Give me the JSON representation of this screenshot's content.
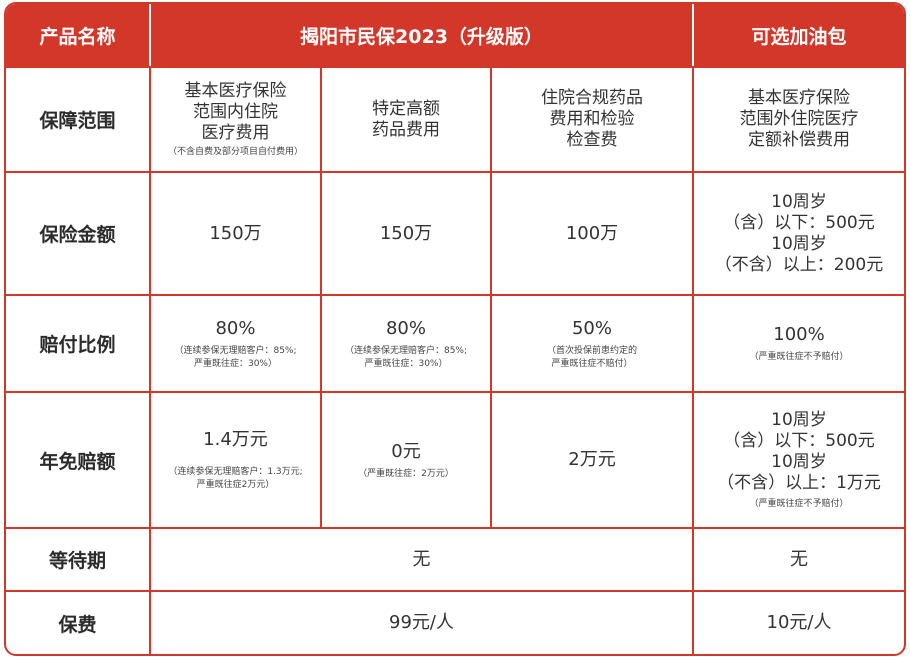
{
  "header": {
    "product_name": "产品名称",
    "main_product": "揭阳市民保2023（升级版）",
    "optional_pack": "可选加油包"
  },
  "rows": {
    "coverage": {
      "label": "保障范围",
      "col1": [
        "基本医疗保险",
        "范围内住院",
        "医疗费用"
      ],
      "col1_note": "（不含自费及部分项目自付费用）",
      "col2": [
        "特定高额",
        "药品费用"
      ],
      "col3": [
        "住院合规药品",
        "费用和检验",
        "检查费"
      ],
      "col4": [
        "基本医疗保险",
        "范围外住院医疗",
        "定额补偿费用"
      ]
    },
    "amount": {
      "label": "保险金额",
      "col1": "150万",
      "col2": "150万",
      "col3": "100万",
      "col4": [
        "10周岁",
        "（含）以下：500元",
        "10周岁",
        "（不含）以上：200元"
      ]
    },
    "ratio": {
      "label": "赔付比例",
      "col1": "80%",
      "col1_note": [
        "（连续参保无理赔客户：85%;",
        "严重既往症：30%）"
      ],
      "col2": "80%",
      "col2_note": [
        "（连续参保无理赔客户：85%;",
        "严重既往症：30%）"
      ],
      "col3": "50%",
      "col3_note": [
        "（首次投保前患约定的",
        "严重既往症不赔付）"
      ],
      "col4": "100%",
      "col4_note": "（严重既往症不予赔付）"
    },
    "deductible": {
      "label": "年免赔额",
      "col1": "1.4万元",
      "col1_note": [
        "（连续参保无理赔客户：1.3万元;",
        "严重既往症2万元）"
      ],
      "col2": "0元",
      "col2_note": "（严重既往症：2万元）",
      "col3": "2万元",
      "col4": [
        "10周岁",
        "（含）以下：500元",
        "10周岁",
        "（不含）以上：1万元"
      ],
      "col4_note": "（严重既往症不予赔付）"
    },
    "waiting": {
      "label": "等待期",
      "main": "无",
      "optional": "无"
    },
    "premium": {
      "label": "保费",
      "main": "99元/人",
      "optional": "10元/人"
    }
  },
  "colors": {
    "accent": "#d2372a",
    "header_text": "#ffffff"
  }
}
